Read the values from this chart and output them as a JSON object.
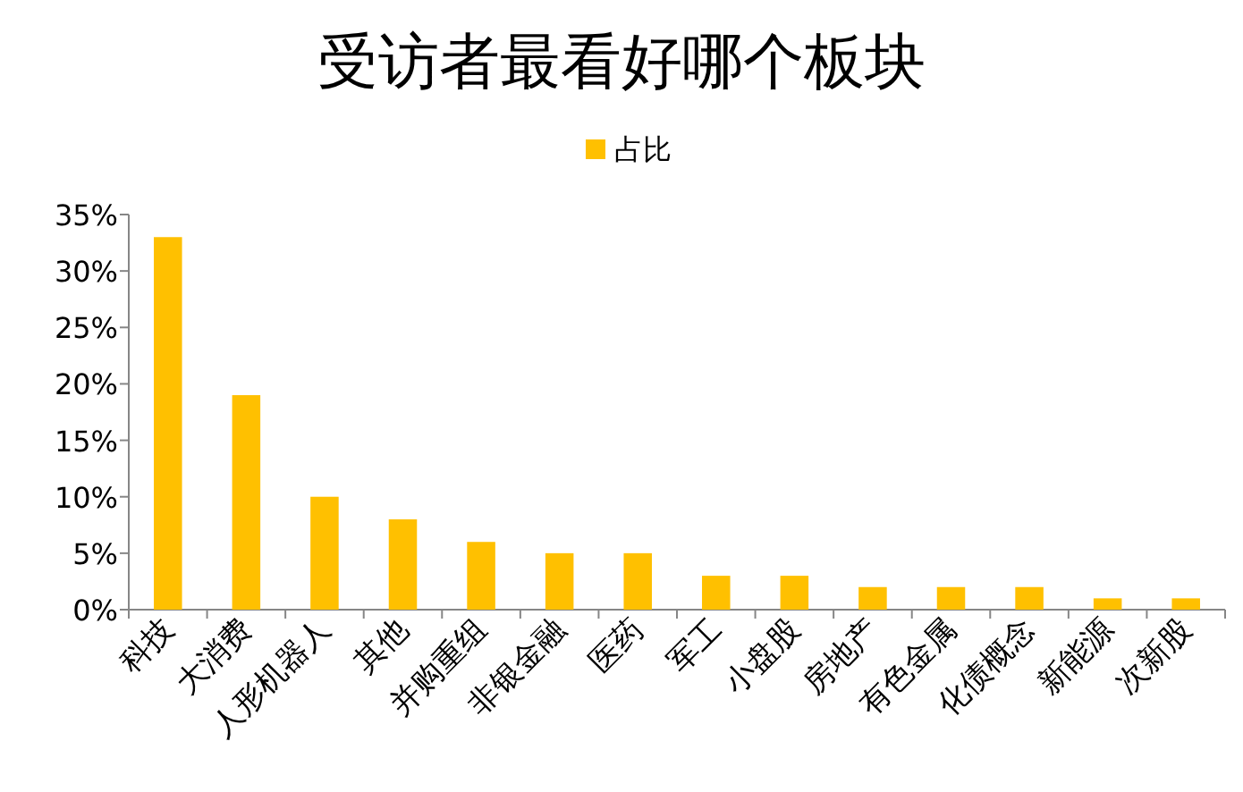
{
  "chart_data": {
    "type": "bar",
    "title": "受访者最看好哪个板块",
    "categories": [
      "科技",
      "大消费",
      "人形机器人",
      "其他",
      "并购重组",
      "非银金融",
      "医药",
      "军工",
      "小盘股",
      "房地产",
      "有色金属",
      "化债概念",
      "新能源",
      "次新股"
    ],
    "series": [
      {
        "name": "占比",
        "color": "#ffc000",
        "values": [
          33,
          19,
          10,
          8,
          6,
          5,
          5,
          3,
          3,
          2,
          2,
          2,
          1,
          1
        ]
      }
    ],
    "ylim": [
      0,
      35
    ],
    "yticks": [
      {
        "value": 0,
        "label": "0%"
      },
      {
        "value": 5,
        "label": "5%"
      },
      {
        "value": 10,
        "label": "10%"
      },
      {
        "value": 15,
        "label": "15%"
      },
      {
        "value": 20,
        "label": "20%"
      },
      {
        "value": 25,
        "label": "25%"
      },
      {
        "value": 30,
        "label": "30%"
      },
      {
        "value": 35,
        "label": "35%"
      }
    ],
    "legend": "top"
  }
}
